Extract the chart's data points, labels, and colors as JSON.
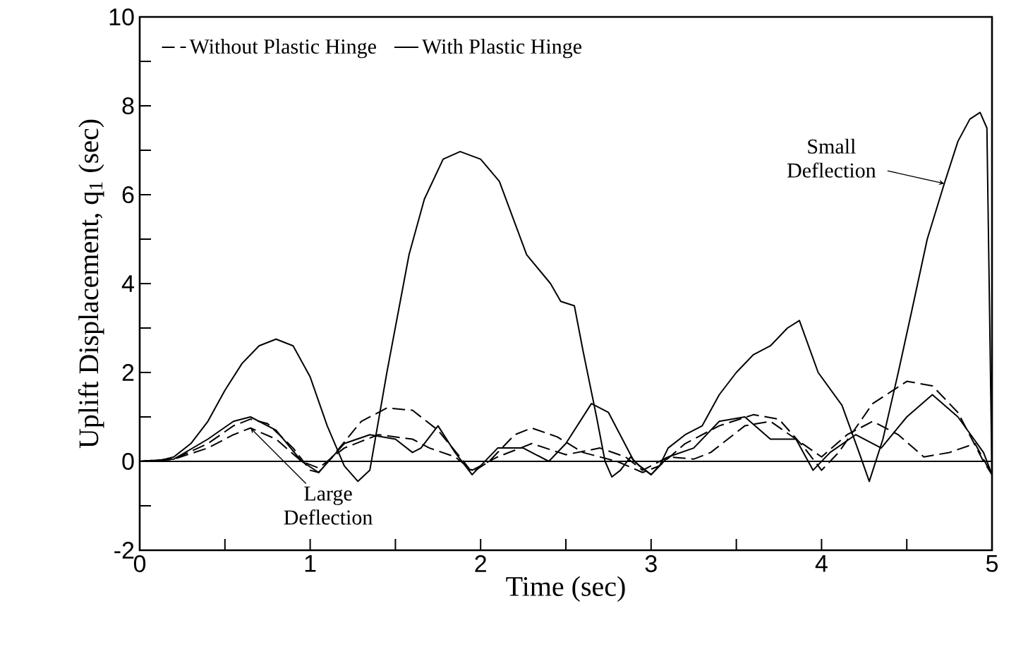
{
  "chart_data": {
    "type": "line",
    "xlabel": "Time (sec)",
    "ylabel": "Uplift Displacement, q$_{1}$ (sec)",
    "xlim": [
      0,
      5
    ],
    "ylim": [
      -2,
      10
    ],
    "xticks": [
      0,
      {
        "value": 0.5,
        "label": null
      },
      1,
      {
        "value": 1.5,
        "label": null
      },
      2,
      {
        "value": 2.5,
        "label": null
      },
      3,
      {
        "value": 3.5,
        "label": null
      },
      4,
      {
        "value": 4.5,
        "label": null
      },
      5
    ],
    "yticks": [
      -2,
      {
        "value": -1,
        "label": null
      },
      0,
      {
        "value": 1,
        "label": null
      },
      2,
      {
        "value": 3,
        "label": null
      },
      4,
      {
        "value": 5,
        "label": null
      },
      6,
      {
        "value": 7,
        "label": null
      },
      8,
      {
        "value": 9,
        "label": null
      },
      10
    ],
    "legend": "top left",
    "ref_lines": [
      {
        "axis": "y",
        "value": 0
      }
    ],
    "annotations": [
      {
        "text": "Large Deflection",
        "x": 0.65,
        "y": 0.75
      },
      {
        "text": "Small Deflection",
        "x": 4.72,
        "y": 6.25
      }
    ],
    "series": [
      {
        "name": "Without Plastic Hinge",
        "color": "#000000",
        "line_style": "dashed",
        "x": [
          0,
          0.2,
          0.4,
          0.55,
          0.65,
          0.75,
          0.9,
          1.0,
          1.05,
          1.15,
          1.3,
          1.45,
          1.6,
          1.75,
          1.9,
          1.95,
          2.05,
          2.2,
          2.3,
          2.45,
          2.6,
          2.8,
          2.95,
          3.05,
          3.2,
          3.4,
          3.6,
          3.75,
          3.9,
          4.0,
          4.1,
          4.3,
          4.5,
          4.65,
          4.8,
          4.95,
          5.0
        ],
        "values": [
          0,
          0.05,
          0.4,
          0.8,
          0.95,
          0.85,
          0.3,
          -0.2,
          -0.25,
          0.2,
          0.9,
          1.2,
          1.15,
          0.7,
          0,
          -0.25,
          0,
          0.6,
          0.75,
          0.55,
          0.2,
          0,
          -0.25,
          -0.1,
          0.4,
          0.8,
          1.05,
          0.95,
          0.3,
          -0.2,
          0.2,
          1.3,
          1.8,
          1.7,
          1.1,
          0,
          -0.3
        ]
      },
      {
        "name": "With Plastic Hinge",
        "color": "#000000",
        "line_style": "solid",
        "x": [
          0,
          0.1,
          0.2,
          0.3,
          0.4,
          0.5,
          0.6,
          0.7,
          0.8,
          0.9,
          1.0,
          1.1,
          1.2,
          1.28,
          1.35,
          1.45,
          1.58,
          1.67,
          1.78,
          1.88,
          2.0,
          2.11,
          2.27,
          2.41,
          2.47,
          2.55,
          2.6,
          2.68,
          2.73,
          2.77,
          2.82,
          2.88,
          2.93,
          3.0,
          3.05,
          3.1,
          3.2,
          3.3,
          3.4,
          3.5,
          3.6,
          3.7,
          3.8,
          3.87,
          3.98,
          4.12,
          4.22,
          4.28,
          4.36,
          4.45,
          4.53,
          4.62,
          4.72,
          4.8,
          4.87,
          4.93,
          4.97,
          5.0
        ],
        "values": [
          0,
          0,
          0.1,
          0.4,
          0.9,
          1.6,
          2.2,
          2.6,
          2.75,
          2.6,
          1.9,
          0.8,
          -0.1,
          -0.45,
          -0.2,
          2.0,
          4.65,
          5.9,
          6.8,
          6.97,
          6.8,
          6.3,
          4.65,
          4.0,
          3.6,
          3.5,
          2.5,
          1.0,
          0,
          -0.35,
          -0.2,
          0.1,
          -0.1,
          -0.3,
          -0.1,
          0.3,
          0.6,
          0.8,
          1.5,
          2.0,
          2.4,
          2.6,
          3.0,
          3.17,
          2.0,
          1.26,
          0.2,
          -0.45,
          0.5,
          2.0,
          3.4,
          5.0,
          6.25,
          7.2,
          7.7,
          7.85,
          7.5,
          -0.4
        ]
      },
      {
        "color": "#000000",
        "line_style": "solid",
        "x": [
          0,
          0.2,
          0.4,
          0.55,
          0.65,
          0.8,
          0.95,
          1.05,
          1.2,
          1.35,
          1.5,
          1.6,
          1.65,
          1.75,
          1.85,
          1.95,
          2.1,
          2.25,
          2.4,
          2.5,
          2.65,
          2.75,
          2.9,
          3.0,
          3.1,
          3.25,
          3.4,
          3.55,
          3.7,
          3.85,
          3.95,
          4.05,
          4.2,
          4.35,
          4.5,
          4.65,
          4.8,
          4.95,
          5.0
        ],
        "values": [
          0,
          0.05,
          0.5,
          0.9,
          1.0,
          0.7,
          0,
          -0.25,
          0.4,
          0.6,
          0.5,
          0.2,
          0.3,
          0.8,
          0.2,
          -0.3,
          0.3,
          0.3,
          0,
          0.4,
          1.3,
          1.1,
          0,
          -0.3,
          0.1,
          0.3,
          0.9,
          1.0,
          0.5,
          0.5,
          -0.2,
          0.2,
          0.6,
          0.3,
          1.0,
          1.5,
          1.0,
          0.2,
          -0.3
        ]
      },
      {
        "color": "#000000",
        "line_style": "dashed",
        "x": [
          0,
          0.2,
          0.4,
          0.55,
          0.65,
          0.8,
          0.95,
          1.05,
          1.2,
          1.4,
          1.6,
          1.7,
          1.85,
          1.95,
          2.1,
          2.3,
          2.5,
          2.7,
          2.85,
          2.95,
          3.1,
          3.25,
          3.35,
          3.55,
          3.7,
          3.85,
          4.0,
          4.15,
          4.3,
          4.45,
          4.6,
          4.75,
          4.9,
          5.0
        ],
        "values": [
          0,
          0.05,
          0.3,
          0.6,
          0.75,
          0.5,
          0,
          -0.15,
          0.3,
          0.6,
          0.5,
          0.3,
          0.1,
          -0.2,
          0.1,
          0.4,
          0.15,
          0.3,
          0.1,
          -0.2,
          0.1,
          0.05,
          0.2,
          0.8,
          0.9,
          0.5,
          0.1,
          0.6,
          0.9,
          0.6,
          0.1,
          0.2,
          0.4,
          -0.3
        ]
      }
    ]
  }
}
